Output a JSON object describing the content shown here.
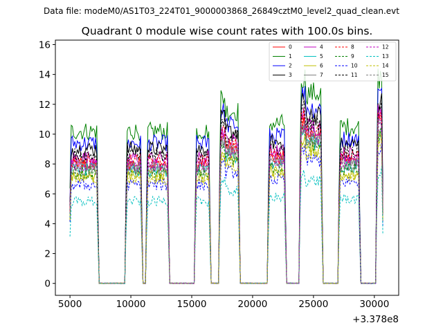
{
  "suptitle": "Data file: modeM0/AS1T03_224T01_9000003868_26849cztM0_level2_quad_clean.evt",
  "chart_data": {
    "type": "line",
    "title": "Quadrant 0 module wise count rates with 100.0s bins.",
    "xlabel": "",
    "ylabel": "",
    "x_offset_label": "+3.378e8",
    "xlim": [
      3800,
      32000
    ],
    "ylim": [
      -0.8,
      16.3
    ],
    "xticks": [
      5000,
      10000,
      15000,
      20000,
      25000,
      30000
    ],
    "xtick_labels": [
      "5000",
      "10000",
      "15000",
      "20000",
      "25000",
      "30000"
    ],
    "yticks": [
      0,
      2,
      4,
      6,
      8,
      10,
      12,
      14,
      16
    ],
    "ytick_labels": [
      "0",
      "2",
      "4",
      "6",
      "8",
      "10",
      "12",
      "14",
      "16"
    ],
    "legend_loc": "upper right",
    "on_intervals": [
      [
        5000,
        7300
      ],
      [
        9600,
        10900
      ],
      [
        11300,
        13100
      ],
      [
        15300,
        16500
      ],
      [
        17300,
        18900
      ],
      [
        21300,
        22700
      ],
      [
        23900,
        25700
      ],
      [
        27100,
        28800
      ],
      [
        30200,
        30700
      ]
    ],
    "bin_width_s": 100,
    "series": [
      {
        "name": "0",
        "color": "#ff0000",
        "dash": "solid",
        "level": 8.0
      },
      {
        "name": "1",
        "color": "#008000",
        "dash": "solid",
        "level": 10.2
      },
      {
        "name": "2",
        "color": "#0000ff",
        "dash": "solid",
        "level": 9.4
      },
      {
        "name": "3",
        "color": "#000000",
        "dash": "solid",
        "level": 9.0
      },
      {
        "name": "4",
        "color": "#bf00bf",
        "dash": "solid",
        "level": 8.4
      },
      {
        "name": "5",
        "color": "#00bfbf",
        "dash": "solid",
        "level": 7.6
      },
      {
        "name": "6",
        "color": "#bfbf00",
        "dash": "solid",
        "level": 7.2
      },
      {
        "name": "7",
        "color": "#808080",
        "dash": "solid",
        "level": 7.8
      },
      {
        "name": "8",
        "color": "#ff0000",
        "dash": "dashed",
        "level": 8.2
      },
      {
        "name": "9",
        "color": "#008000",
        "dash": "dashed",
        "level": 7.4
      },
      {
        "name": "10",
        "color": "#0000ff",
        "dash": "dashed",
        "level": 6.6
      },
      {
        "name": "11",
        "color": "#000000",
        "dash": "dashed",
        "level": 8.6
      },
      {
        "name": "12",
        "color": "#bf00bf",
        "dash": "dashed",
        "level": 7.9
      },
      {
        "name": "13",
        "color": "#00bfbf",
        "dash": "dashed",
        "level": 5.5
      },
      {
        "name": "14",
        "color": "#bfbf00",
        "dash": "dashed",
        "level": 7.0
      },
      {
        "name": "15",
        "color": "#808080",
        "dash": "dashed",
        "level": 7.7
      }
    ]
  }
}
